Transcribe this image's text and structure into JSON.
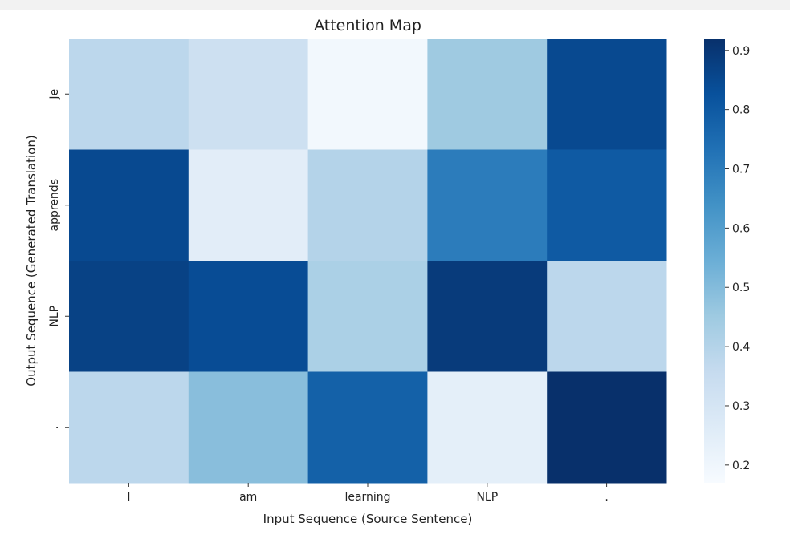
{
  "chart_data": {
    "type": "heatmap",
    "title": "Attention Map",
    "xlabel": "Input Sequence (Source Sentence)",
    "ylabel": "Output Sequence (Generated Translation)",
    "x_categories": [
      "I",
      "am",
      "learning",
      "NLP",
      "."
    ],
    "y_categories": [
      "Je",
      "apprends",
      "NLP",
      "."
    ],
    "values": [
      [
        0.38,
        0.33,
        0.19,
        0.45,
        0.85
      ],
      [
        0.85,
        0.25,
        0.4,
        0.7,
        0.8
      ],
      [
        0.87,
        0.84,
        0.42,
        0.89,
        0.38
      ],
      [
        0.38,
        0.49,
        0.78,
        0.24,
        0.92
      ]
    ],
    "colormap": "Blues",
    "colorbar": {
      "min": 0.17,
      "max": 0.92,
      "ticks": [
        "0.2",
        "0.3",
        "0.4",
        "0.5",
        "0.6",
        "0.7",
        "0.8",
        "0.9"
      ],
      "tick_values": [
        0.2,
        0.3,
        0.4,
        0.5,
        0.6,
        0.7,
        0.8,
        0.9
      ]
    },
    "grid": false
  }
}
